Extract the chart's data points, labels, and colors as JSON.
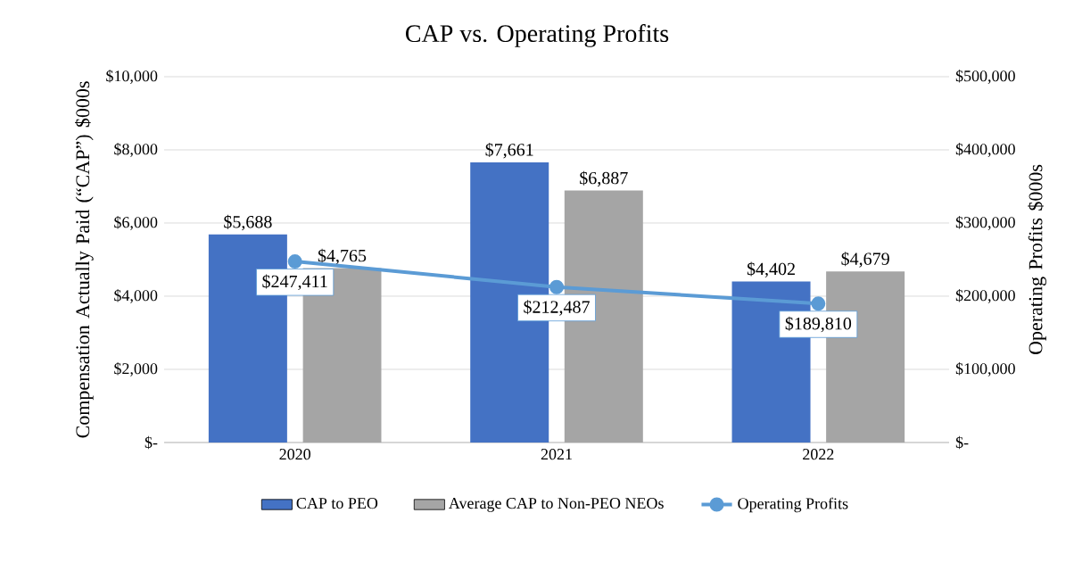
{
  "chart_data": {
    "type": "bar",
    "title": "CAP vs. Operating Profits",
    "ylabel": "Compensation Actually Paid (“CAP”) $000s",
    "y2label": "Operating Profits $000s",
    "categories": [
      "2020",
      "2021",
      "2022"
    ],
    "series": [
      {
        "name": "CAP to PEO",
        "color": "#4472c4",
        "values": [
          5688,
          7661,
          4402
        ],
        "value_labels": [
          "$5,688",
          "$7,661",
          "$4,402"
        ]
      },
      {
        "name": "Average CAP to Non-PEO NEOs",
        "color": "#a5a5a5",
        "values": [
          4765,
          6887,
          4679
        ],
        "value_labels": [
          "$4,765",
          "$6,887",
          "$4,679"
        ]
      },
      {
        "name": "Operating Profits",
        "type": "line",
        "axis": "y2",
        "color": "#5b9bd5",
        "marker": "circle",
        "values": [
          247411,
          212487,
          189810
        ],
        "value_labels": [
          "$247,411",
          "$212,487",
          "$189,810"
        ]
      }
    ],
    "ylim": [
      0,
      10000
    ],
    "yticks": [
      {
        "value": 0,
        "label": "$-"
      },
      {
        "value": 2000,
        "label": "$2,000"
      },
      {
        "value": 4000,
        "label": "$4,000"
      },
      {
        "value": 6000,
        "label": "$6,000"
      },
      {
        "value": 8000,
        "label": "$8,000"
      },
      {
        "value": 10000,
        "label": "$10,000"
      }
    ],
    "y2lim": [
      0,
      500000
    ],
    "y2ticks": [
      {
        "value": 0,
        "label": "$-"
      },
      {
        "value": 100000,
        "label": "$100,000"
      },
      {
        "value": 200000,
        "label": "$200,000"
      },
      {
        "value": 300000,
        "label": "$300,000"
      },
      {
        "value": 400000,
        "label": "$400,000"
      },
      {
        "value": 500000,
        "label": "$500,000"
      }
    ],
    "grid": "y",
    "legend": "bottom"
  }
}
